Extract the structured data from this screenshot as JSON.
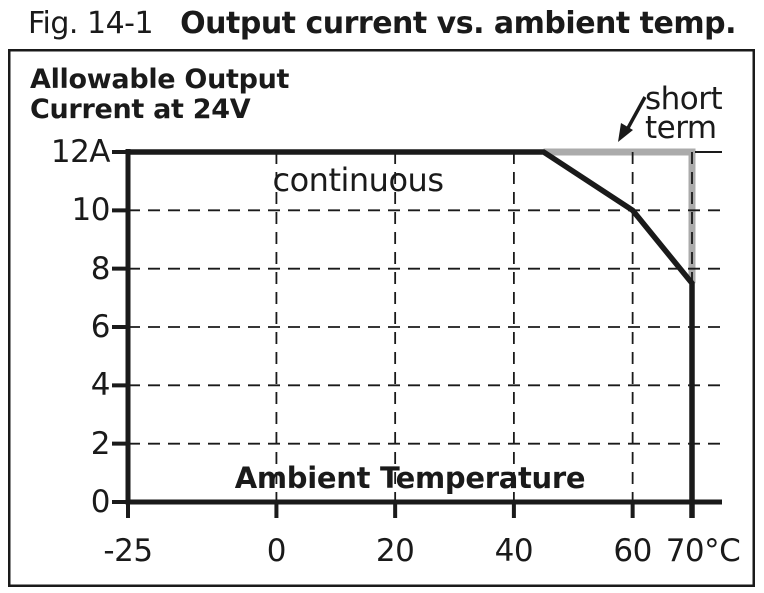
{
  "title": {
    "figure_label": "Fig. 14-1",
    "figure_title": "Output current vs. ambient temp."
  },
  "labels": {
    "y_axis_title_line1": "Allowable Output",
    "y_axis_title_line2": "Current at 24V",
    "x_axis_title": "Ambient Temperature",
    "continuous": "continuous",
    "short_term_line1": "short",
    "short_term_line2": "term"
  },
  "colors": {
    "line_black": "#1a1a1a",
    "line_gray": "#ababab",
    "background": "#ffffff"
  },
  "chart_data": {
    "type": "line",
    "title": "Fig. 14-1 Output current vs. ambient temp.",
    "xlabel": "Ambient Temperature (°C)",
    "ylabel": "Allowable Output Current at 24V (A)",
    "xlim": [
      -25,
      70
    ],
    "ylim": [
      0,
      12
    ],
    "x_tick_labels": [
      "-25",
      "0",
      "20",
      "40",
      "60",
      "70°C"
    ],
    "x_tick_values": [
      -25,
      0,
      20,
      40,
      60,
      70
    ],
    "y_tick_labels": [
      "12A",
      "10",
      "8",
      "6",
      "4",
      "2",
      "0"
    ],
    "y_tick_values": [
      12,
      10,
      8,
      6,
      4,
      2,
      0
    ],
    "grid": "dashed",
    "grid_x_values": [
      0,
      20,
      40,
      60,
      70
    ],
    "grid_y_values": [
      10,
      8,
      6,
      4,
      2
    ],
    "legend_position": "inline annotations (continuous / short term)",
    "series": [
      {
        "name": "continuous",
        "color": "#1a1a1a",
        "points": [
          [
            -25,
            12
          ],
          [
            45,
            12
          ],
          [
            60,
            10
          ],
          [
            70,
            7.5
          ],
          [
            70,
            0
          ]
        ]
      },
      {
        "name": "short term",
        "color": "#ababab",
        "points": [
          [
            45,
            12
          ],
          [
            70,
            12
          ],
          [
            70,
            7.5
          ]
        ]
      }
    ]
  }
}
